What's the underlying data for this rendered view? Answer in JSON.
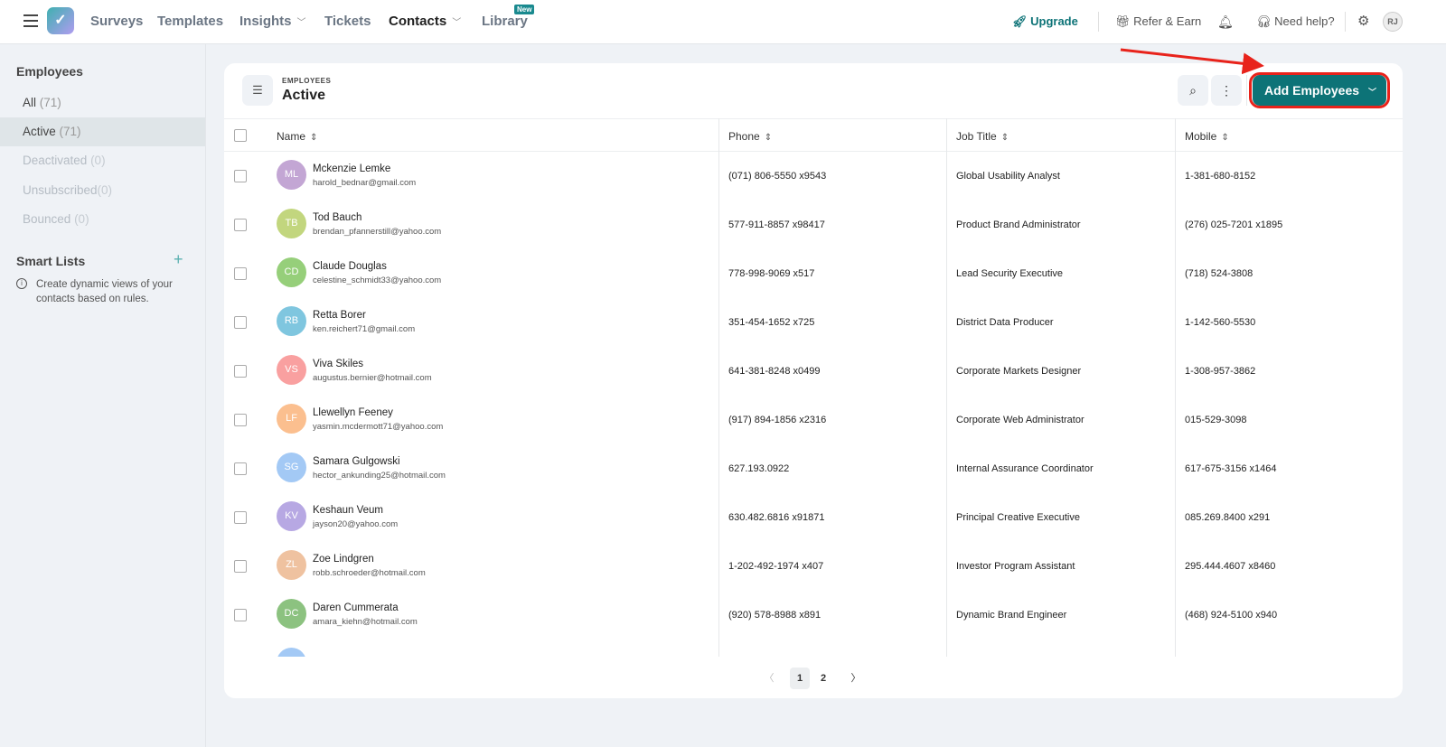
{
  "topnav": {
    "items": [
      {
        "label": "Surveys",
        "dropdown": false
      },
      {
        "label": "Templates",
        "dropdown": false
      },
      {
        "label": "Insights",
        "dropdown": true
      },
      {
        "label": "Tickets",
        "dropdown": false
      },
      {
        "label": "Contacts",
        "dropdown": true,
        "active": true
      },
      {
        "label": "Library",
        "dropdown": false
      }
    ],
    "library_badge": "New",
    "upgrade": "Upgrade",
    "refer": "Refer & Earn",
    "help": "Need help?",
    "user_initials": "RJ",
    "accent_color": "#0d7377"
  },
  "sidebar": {
    "heading": "Employees",
    "items": [
      {
        "label": "All",
        "count": "(71)"
      },
      {
        "label": "Active",
        "count": "(71)",
        "selected": true
      },
      {
        "label": "Deactivated",
        "count": "(0)"
      },
      {
        "label": "Unsubscribed",
        "count": "(0)"
      },
      {
        "label": "Bounced",
        "count": "(0)"
      }
    ],
    "smart_lists": "Smart Lists",
    "smart_lists_note": "Create dynamic views of your contacts based on rules."
  },
  "main": {
    "eyebrow": "EMPLOYEES",
    "title": "Active",
    "add_button": "Add Employees",
    "columns": [
      "Name",
      "Phone",
      "Job Title",
      "Mobile"
    ],
    "rows": [
      {
        "initials": "ML",
        "color": "#c3a6d4",
        "name": "Mckenzie Lemke",
        "email": "harold_bednar@gmail.com",
        "phone": "(071) 806-5550 x9543",
        "job": "Global Usability Analyst",
        "mobile": "1-381-680-8152"
      },
      {
        "initials": "TB",
        "color": "#c2d67e",
        "name": "Tod Bauch",
        "email": "brendan_pfannerstill@yahoo.com",
        "phone": "577-911-8857 x98417",
        "job": "Product Brand Administrator",
        "mobile": "(276) 025-7201 x1895"
      },
      {
        "initials": "CD",
        "color": "#96cf7a",
        "name": "Claude Douglas",
        "email": "celestine_schmidt33@yahoo.com",
        "phone": "778-998-9069 x517",
        "job": "Lead Security Executive",
        "mobile": "(718) 524-3808"
      },
      {
        "initials": "RB",
        "color": "#7fc6df",
        "name": "Retta Borer",
        "email": "ken.reichert71@gmail.com",
        "phone": "351-454-1652 x725",
        "job": "District Data Producer",
        "mobile": "1-142-560-5530"
      },
      {
        "initials": "VS",
        "color": "#f9a0a0",
        "name": "Viva Skiles",
        "email": "augustus.bernier@hotmail.com",
        "phone": "641-381-8248 x0499",
        "job": "Corporate Markets Designer",
        "mobile": "1-308-957-3862"
      },
      {
        "initials": "LF",
        "color": "#fbbf8f",
        "name": "Llewellyn Feeney",
        "email": "yasmin.mcdermott71@yahoo.com",
        "phone": "(917) 894-1856 x2316",
        "job": "Corporate Web Administrator",
        "mobile": "015-529-3098"
      },
      {
        "initials": "SG",
        "color": "#a3c9f5",
        "name": "Samara Gulgowski",
        "email": "hector_ankunding25@hotmail.com",
        "phone": "627.193.0922",
        "job": "Internal Assurance Coordinator",
        "mobile": "617-675-3156 x1464"
      },
      {
        "initials": "KV",
        "color": "#b7a8e3",
        "name": "Keshaun Veum",
        "email": "jayson20@yahoo.com",
        "phone": "630.482.6816 x91871",
        "job": "Principal Creative Executive",
        "mobile": "085.269.8400 x291"
      },
      {
        "initials": "ZL",
        "color": "#efc2a0",
        "name": "Zoe Lindgren",
        "email": "robb.schroeder@hotmail.com",
        "phone": "1-202-492-1974 x407",
        "job": "Investor Program Assistant",
        "mobile": "295.444.4607 x8460"
      },
      {
        "initials": "DC",
        "color": "#8cc280",
        "name": "Daren Cummerata",
        "email": "amara_kiehn@hotmail.com",
        "phone": "(920) 578-8988 x891",
        "job": "Dynamic Brand Engineer",
        "mobile": "(468) 924-5100 x940"
      }
    ],
    "partial_row_color": "#a3c9f5",
    "pagination": {
      "pages": [
        "1",
        "2"
      ],
      "current": "1"
    }
  }
}
